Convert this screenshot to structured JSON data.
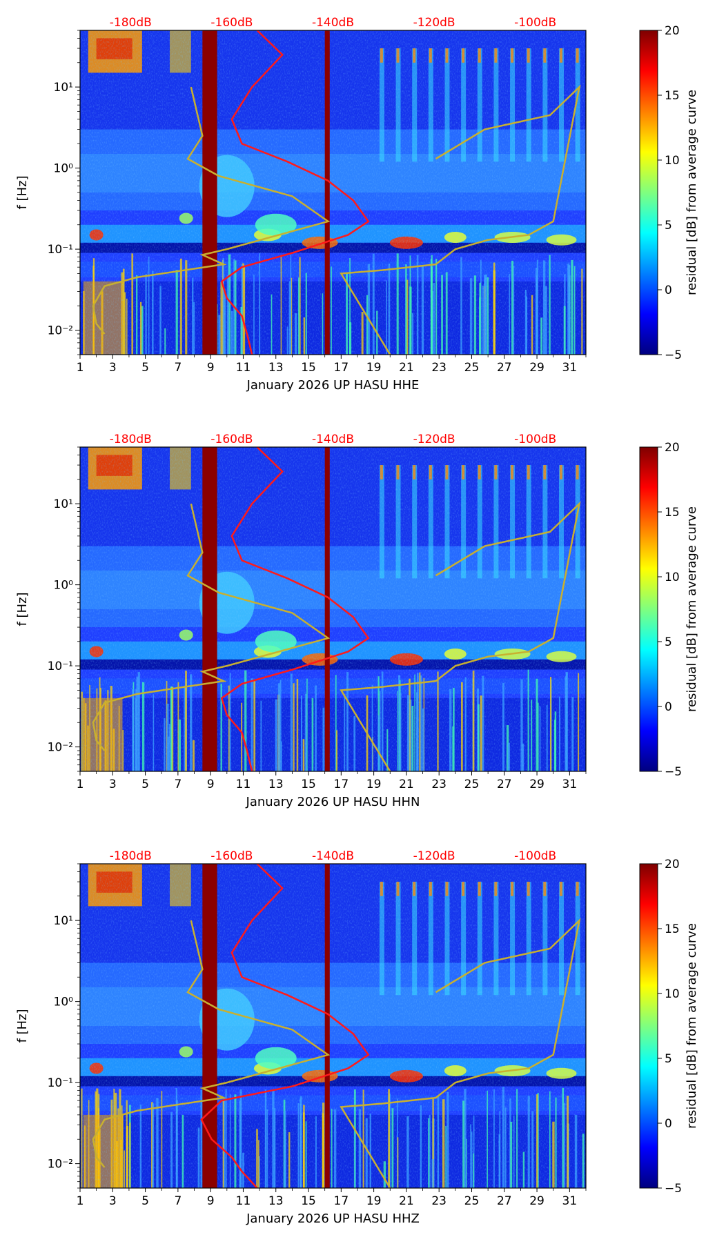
{
  "colors": {
    "noise_model": "#ff1a1a",
    "db_label": "#ff0000",
    "reference_curve": "#c8b030",
    "outage_band": "#8b0000",
    "colormap": [
      "#00007f",
      "#0000ff",
      "#007fff",
      "#00ffff",
      "#7fff7f",
      "#ffff00",
      "#ff7f00",
      "#ff0000",
      "#7f0000"
    ]
  },
  "chart_data": [
    {
      "type": "heatmap",
      "title": "",
      "xlabel": "January 2026 UP HASU  HHE",
      "ylabel": "f [Hz]",
      "x_ticks": [
        "1",
        "3",
        "5",
        "7",
        "9",
        "11",
        "13",
        "15",
        "17",
        "19",
        "21",
        "23",
        "25",
        "27",
        "29",
        "31"
      ],
      "xlim": [
        1,
        32
      ],
      "y_ticks": [
        "10⁻²",
        "10⁻¹",
        "10⁰",
        "10¹"
      ],
      "ylim_hz": [
        0.005,
        50
      ],
      "colorbar": {
        "label": "residual [dB] from average curve",
        "ticks": [
          "−5",
          "0",
          "5",
          "10",
          "15",
          "20"
        ],
        "range": [
          -5,
          20
        ]
      },
      "db_scale_labels": [
        "-180dB",
        "-160dB",
        "-140dB",
        "-120dB",
        "-100dB"
      ],
      "noise_model_curve": [
        {
          "db": -155,
          "f": 50
        },
        {
          "db": -150,
          "f": 25
        },
        {
          "db": -156,
          "f": 10
        },
        {
          "db": -160,
          "f": 4
        },
        {
          "db": -158,
          "f": 2
        },
        {
          "db": -149,
          "f": 1.2
        },
        {
          "db": -141,
          "f": 0.7
        },
        {
          "db": -136,
          "f": 0.4
        },
        {
          "db": -133,
          "f": 0.22
        },
        {
          "db": -137,
          "f": 0.15
        },
        {
          "db": -148,
          "f": 0.09
        },
        {
          "db": -158,
          "f": 0.06
        },
        {
          "db": -162,
          "f": 0.04
        },
        {
          "db": -161,
          "f": 0.025
        },
        {
          "db": -158,
          "f": 0.015
        },
        {
          "db": -157,
          "f": 0.009
        },
        {
          "db": -156,
          "f": 0.005
        }
      ],
      "reference_curve": [
        {
          "day": 7.8,
          "f": 10
        },
        {
          "day": 8.5,
          "f": 2.5
        },
        {
          "day": 7.6,
          "f": 1.3
        },
        {
          "day": 9.5,
          "f": 0.8
        },
        {
          "day": 14,
          "f": 0.45
        },
        {
          "day": 16.2,
          "f": 0.22
        },
        {
          "day": 10,
          "f": 0.1
        },
        {
          "day": 8.5,
          "f": 0.085
        },
        {
          "day": 9.8,
          "f": 0.065
        },
        {
          "day": 4.5,
          "f": 0.045
        },
        {
          "day": 2.5,
          "f": 0.035
        },
        {
          "day": 1.8,
          "f": 0.02
        },
        {
          "day": 2,
          "f": 0.012
        },
        {
          "day": 2.5,
          "f": 0.009
        },
        {
          "day": 22.8,
          "f": 1.3
        },
        {
          "day": 25.8,
          "f": 3
        },
        {
          "day": 29.8,
          "f": 4.5
        },
        {
          "day": 31.6,
          "f": 10
        },
        {
          "day": 30,
          "f": 0.22
        },
        {
          "day": 28.5,
          "f": 0.15
        },
        {
          "day": 26,
          "f": 0.13
        },
        {
          "day": 24,
          "f": 0.1
        },
        {
          "day": 22.8,
          "f": 0.065
        },
        {
          "day": 19.5,
          "f": 0.055
        },
        {
          "day": 17,
          "f": 0.05
        },
        {
          "day": 20,
          "f": 0.005
        }
      ],
      "outage_days": [
        [
          8.5,
          9.4
        ],
        [
          16.0,
          16.3
        ]
      ]
    },
    {
      "type": "heatmap",
      "title": "",
      "xlabel": "January 2026 UP HASU  HHN",
      "ylabel": "f [Hz]",
      "x_ticks": [
        "1",
        "3",
        "5",
        "7",
        "9",
        "11",
        "13",
        "15",
        "17",
        "19",
        "21",
        "23",
        "25",
        "27",
        "29",
        "31"
      ],
      "xlim": [
        1,
        32
      ],
      "y_ticks": [
        "10⁻²",
        "10⁻¹",
        "10⁰",
        "10¹"
      ],
      "ylim_hz": [
        0.005,
        50
      ],
      "colorbar": {
        "label": "residual [dB] from average curve",
        "ticks": [
          "−5",
          "0",
          "5",
          "10",
          "15",
          "20"
        ],
        "range": [
          -5,
          20
        ]
      },
      "db_scale_labels": [
        "-180dB",
        "-160dB",
        "-140dB",
        "-120dB",
        "-100dB"
      ],
      "noise_model_curve": [
        {
          "db": -155,
          "f": 50
        },
        {
          "db": -150,
          "f": 25
        },
        {
          "db": -156,
          "f": 10
        },
        {
          "db": -160,
          "f": 4
        },
        {
          "db": -158,
          "f": 2
        },
        {
          "db": -149,
          "f": 1.2
        },
        {
          "db": -141,
          "f": 0.7
        },
        {
          "db": -136,
          "f": 0.4
        },
        {
          "db": -133,
          "f": 0.22
        },
        {
          "db": -137,
          "f": 0.15
        },
        {
          "db": -148,
          "f": 0.09
        },
        {
          "db": -158,
          "f": 0.06
        },
        {
          "db": -162,
          "f": 0.04
        },
        {
          "db": -161,
          "f": 0.025
        },
        {
          "db": -158,
          "f": 0.015
        },
        {
          "db": -157,
          "f": 0.009
        },
        {
          "db": -156,
          "f": 0.005
        }
      ],
      "reference_curve": [
        {
          "day": 7.8,
          "f": 10
        },
        {
          "day": 8.5,
          "f": 2.5
        },
        {
          "day": 7.6,
          "f": 1.3
        },
        {
          "day": 9.5,
          "f": 0.8
        },
        {
          "day": 14,
          "f": 0.45
        },
        {
          "day": 16.2,
          "f": 0.22
        },
        {
          "day": 10,
          "f": 0.1
        },
        {
          "day": 8.5,
          "f": 0.085
        },
        {
          "day": 9.8,
          "f": 0.065
        },
        {
          "day": 4.5,
          "f": 0.045
        },
        {
          "day": 2.5,
          "f": 0.035
        },
        {
          "day": 1.8,
          "f": 0.02
        },
        {
          "day": 2,
          "f": 0.012
        },
        {
          "day": 2.5,
          "f": 0.009
        },
        {
          "day": 22.8,
          "f": 1.3
        },
        {
          "day": 25.8,
          "f": 3
        },
        {
          "day": 29.8,
          "f": 4.5
        },
        {
          "day": 31.6,
          "f": 10
        },
        {
          "day": 30,
          "f": 0.22
        },
        {
          "day": 28.5,
          "f": 0.15
        },
        {
          "day": 26,
          "f": 0.13
        },
        {
          "day": 24,
          "f": 0.1
        },
        {
          "day": 22.8,
          "f": 0.065
        },
        {
          "day": 19.5,
          "f": 0.055
        },
        {
          "day": 17,
          "f": 0.05
        },
        {
          "day": 20,
          "f": 0.005
        }
      ],
      "outage_days": [
        [
          8.5,
          9.4
        ],
        [
          16.0,
          16.3
        ]
      ]
    },
    {
      "type": "heatmap",
      "title": "",
      "xlabel": "January 2026 UP HASU  HHZ",
      "ylabel": "f [Hz]",
      "x_ticks": [
        "1",
        "3",
        "5",
        "7",
        "9",
        "11",
        "13",
        "15",
        "17",
        "19",
        "21",
        "23",
        "25",
        "27",
        "29",
        "31"
      ],
      "xlim": [
        1,
        32
      ],
      "y_ticks": [
        "10⁻²",
        "10⁻¹",
        "10⁰",
        "10¹"
      ],
      "ylim_hz": [
        0.005,
        50
      ],
      "colorbar": {
        "label": "residual [dB] from average curve",
        "ticks": [
          "−5",
          "0",
          "5",
          "10",
          "15",
          "20"
        ],
        "range": [
          -5,
          20
        ]
      },
      "db_scale_labels": [
        "-180dB",
        "-160dB",
        "-140dB",
        "-120dB",
        "-100dB"
      ],
      "noise_model_curve": [
        {
          "db": -155,
          "f": 50
        },
        {
          "db": -150,
          "f": 25
        },
        {
          "db": -156,
          "f": 10
        },
        {
          "db": -160,
          "f": 4
        },
        {
          "db": -158,
          "f": 2
        },
        {
          "db": -149,
          "f": 1.2
        },
        {
          "db": -141,
          "f": 0.7
        },
        {
          "db": -136,
          "f": 0.4
        },
        {
          "db": -133,
          "f": 0.22
        },
        {
          "db": -137,
          "f": 0.15
        },
        {
          "db": -148,
          "f": 0.09
        },
        {
          "db": -162,
          "f": 0.06
        },
        {
          "db": -166,
          "f": 0.035
        },
        {
          "db": -164,
          "f": 0.02
        },
        {
          "db": -160,
          "f": 0.012
        },
        {
          "db": -158,
          "f": 0.008
        },
        {
          "db": -155,
          "f": 0.005
        }
      ],
      "reference_curve": [
        {
          "day": 7.8,
          "f": 10
        },
        {
          "day": 8.5,
          "f": 2.5
        },
        {
          "day": 7.6,
          "f": 1.3
        },
        {
          "day": 9.5,
          "f": 0.8
        },
        {
          "day": 14,
          "f": 0.45
        },
        {
          "day": 16.2,
          "f": 0.22
        },
        {
          "day": 10,
          "f": 0.1
        },
        {
          "day": 8.5,
          "f": 0.085
        },
        {
          "day": 9.8,
          "f": 0.065
        },
        {
          "day": 4.5,
          "f": 0.045
        },
        {
          "day": 2.5,
          "f": 0.035
        },
        {
          "day": 1.8,
          "f": 0.02
        },
        {
          "day": 2,
          "f": 0.012
        },
        {
          "day": 2.5,
          "f": 0.009
        },
        {
          "day": 22.8,
          "f": 1.3
        },
        {
          "day": 25.8,
          "f": 3
        },
        {
          "day": 29.8,
          "f": 4.5
        },
        {
          "day": 31.6,
          "f": 10
        },
        {
          "day": 30,
          "f": 0.22
        },
        {
          "day": 28.5,
          "f": 0.15
        },
        {
          "day": 26,
          "f": 0.13
        },
        {
          "day": 24,
          "f": 0.1
        },
        {
          "day": 22.8,
          "f": 0.065
        },
        {
          "day": 19.5,
          "f": 0.055
        },
        {
          "day": 17,
          "f": 0.05
        },
        {
          "day": 20,
          "f": 0.005
        }
      ],
      "outage_days": [
        [
          8.5,
          9.4
        ],
        [
          16.0,
          16.3
        ]
      ]
    }
  ]
}
